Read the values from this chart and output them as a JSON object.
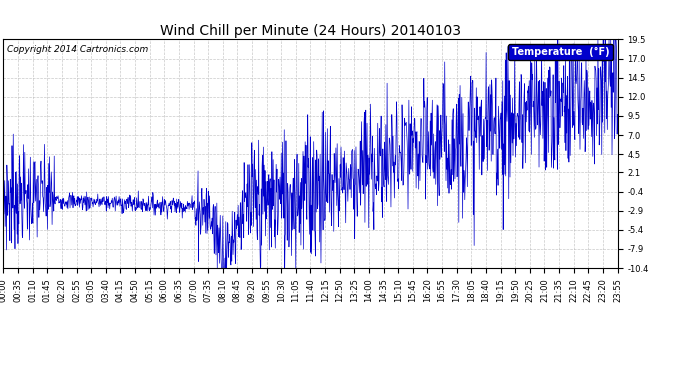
{
  "title": "Wind Chill per Minute (24 Hours) 20140103",
  "copyright_text": "Copyright 2014 Cartronics.com",
  "legend_label": "Temperature  (°F)",
  "legend_bg": "#0000cc",
  "legend_text_color": "#ffffff",
  "line_color": "#0000cc",
  "background_color": "#ffffff",
  "grid_color": "#bbbbbb",
  "ylim": [
    -10.4,
    19.5
  ],
  "yticks": [
    -10.4,
    -7.9,
    -5.4,
    -2.9,
    -0.4,
    2.1,
    4.5,
    7.0,
    9.5,
    12.0,
    14.5,
    17.0,
    19.5
  ],
  "xtick_labels": [
    "00:00",
    "00:35",
    "01:10",
    "01:45",
    "02:20",
    "02:55",
    "03:05",
    "03:40",
    "04:15",
    "04:50",
    "05:15",
    "06:00",
    "06:35",
    "07:00",
    "07:35",
    "08:10",
    "08:45",
    "09:20",
    "09:55",
    "10:30",
    "11:05",
    "11:40",
    "12:15",
    "12:50",
    "13:25",
    "14:00",
    "14:35",
    "15:10",
    "15:45",
    "16:20",
    "16:55",
    "17:30",
    "18:05",
    "18:40",
    "19:15",
    "19:50",
    "20:25",
    "21:00",
    "21:35",
    "22:10",
    "22:45",
    "23:20",
    "23:55"
  ],
  "title_fontsize": 10,
  "copyright_fontsize": 6.5,
  "tick_fontsize": 6.0,
  "fig_width": 6.9,
  "fig_height": 3.75,
  "dpi": 100
}
